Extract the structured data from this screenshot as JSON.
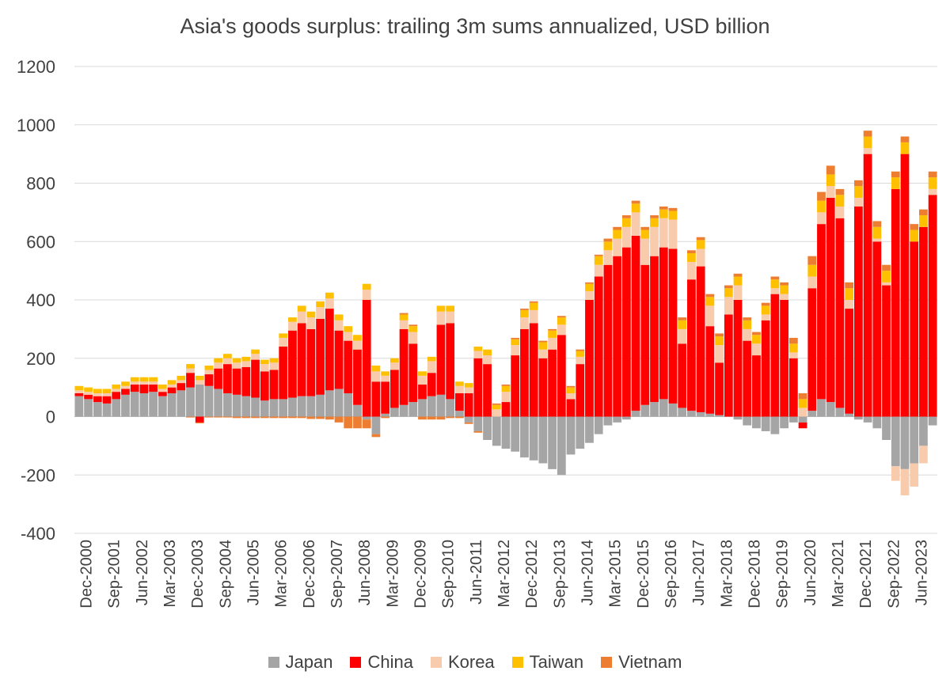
{
  "chart_data": {
    "type": "bar",
    "stacked": true,
    "title": "Asia's goods surplus: trailing 3m sums annualized, USD billion",
    "xlabel": "",
    "ylabel": "",
    "ylim": [
      -400,
      1200
    ],
    "yticks": [
      -400,
      -200,
      0,
      200,
      400,
      600,
      800,
      1000,
      1200
    ],
    "grid": true,
    "legend_position": "bottom",
    "x_tick_labels": [
      "Dec-2000",
      "Sep-2001",
      "Jun-2002",
      "Mar-2003",
      "Dec-2003",
      "Sep-2004",
      "Jun-2005",
      "Mar-2006",
      "Dec-2006",
      "Sep-2007",
      "Jun-2008",
      "Mar-2009",
      "Dec-2009",
      "Sep-2010",
      "Jun-2011",
      "Mar-2012",
      "Dec-2012",
      "Sep-2013",
      "Jun-2014",
      "Mar-2015",
      "Dec-2015",
      "Sep-2016",
      "Jun-2017",
      "Mar-2018",
      "Dec-2018",
      "Sep-2019",
      "Jun-2020",
      "Mar-2021",
      "Dec-2021",
      "Sep-2022",
      "Jun-2023"
    ],
    "categories": [
      "Dec-2000",
      "Mar-2001",
      "Jun-2001",
      "Sep-2001",
      "Dec-2001",
      "Mar-2002",
      "Jun-2002",
      "Sep-2002",
      "Dec-2002",
      "Mar-2003",
      "Jun-2003",
      "Sep-2003",
      "Dec-2003",
      "Mar-2004",
      "Jun-2004",
      "Sep-2004",
      "Dec-2004",
      "Mar-2005",
      "Jun-2005",
      "Sep-2005",
      "Dec-2005",
      "Mar-2006",
      "Jun-2006",
      "Sep-2006",
      "Dec-2006",
      "Mar-2007",
      "Jun-2007",
      "Sep-2007",
      "Dec-2007",
      "Mar-2008",
      "Jun-2008",
      "Sep-2008",
      "Dec-2008",
      "Mar-2009",
      "Jun-2009",
      "Sep-2009",
      "Dec-2009",
      "Mar-2010",
      "Jun-2010",
      "Sep-2010",
      "Dec-2010",
      "Mar-2011",
      "Jun-2011",
      "Sep-2011",
      "Dec-2011",
      "Mar-2012",
      "Jun-2012",
      "Sep-2012",
      "Dec-2012",
      "Mar-2013",
      "Jun-2013",
      "Sep-2013",
      "Dec-2013",
      "Mar-2014",
      "Jun-2014",
      "Sep-2014",
      "Dec-2014",
      "Mar-2015",
      "Jun-2015",
      "Sep-2015",
      "Dec-2015",
      "Mar-2016",
      "Jun-2016",
      "Sep-2016",
      "Dec-2016",
      "Mar-2017",
      "Jun-2017",
      "Sep-2017",
      "Dec-2017",
      "Mar-2018",
      "Jun-2018",
      "Sep-2018",
      "Dec-2018",
      "Mar-2019",
      "Jun-2019",
      "Sep-2019",
      "Dec-2019",
      "Mar-2020",
      "Jun-2020",
      "Sep-2020",
      "Dec-2020",
      "Mar-2021",
      "Jun-2021",
      "Sep-2021",
      "Dec-2021",
      "Mar-2022",
      "Jun-2022",
      "Sep-2022",
      "Dec-2022",
      "Mar-2023",
      "Jun-2023",
      "Sep-2023",
      "Dec-2023"
    ],
    "series": [
      {
        "name": "Japan",
        "color": "#A5A5A5",
        "values": [
          70,
          60,
          50,
          45,
          60,
          75,
          85,
          80,
          85,
          70,
          80,
          90,
          100,
          110,
          105,
          95,
          80,
          75,
          70,
          65,
          55,
          60,
          60,
          65,
          70,
          70,
          75,
          90,
          95,
          80,
          40,
          -10,
          -60,
          10,
          30,
          40,
          50,
          60,
          70,
          75,
          60,
          20,
          -20,
          -50,
          -80,
          -100,
          -110,
          -120,
          -140,
          -150,
          -160,
          -180,
          -200,
          -130,
          -110,
          -90,
          -60,
          -30,
          -20,
          -10,
          20,
          40,
          50,
          60,
          45,
          30,
          20,
          15,
          10,
          5,
          0,
          -10,
          -30,
          -40,
          -50,
          -60,
          -40,
          -20,
          -20,
          20,
          60,
          50,
          30,
          10,
          -10,
          -20,
          -40,
          -80,
          -170,
          -180,
          -160,
          -100,
          -30
        ]
      },
      {
        "name": "China",
        "color": "#FF0000",
        "values": [
          10,
          15,
          20,
          25,
          25,
          20,
          25,
          30,
          25,
          15,
          20,
          25,
          50,
          -20,
          40,
          70,
          100,
          90,
          100,
          130,
          100,
          100,
          180,
          230,
          250,
          230,
          260,
          280,
          200,
          180,
          190,
          400,
          120,
          110,
          130,
          260,
          200,
          50,
          80,
          240,
          260,
          60,
          80,
          200,
          180,
          0,
          50,
          210,
          300,
          320,
          200,
          230,
          280,
          60,
          180,
          400,
          480,
          520,
          550,
          580,
          600,
          480,
          500,
          520,
          530,
          220,
          450,
          500,
          300,
          180,
          350,
          400,
          260,
          210,
          330,
          420,
          400,
          200,
          -20,
          420,
          600,
          700,
          650,
          360,
          720,
          900,
          600,
          450,
          780,
          900,
          600,
          650,
          760
        ]
      },
      {
        "name": "Korea",
        "color": "#F8CBAD",
        "values": [
          10,
          10,
          10,
          10,
          10,
          10,
          10,
          10,
          10,
          10,
          10,
          10,
          15,
          15,
          15,
          20,
          20,
          20,
          20,
          20,
          25,
          25,
          30,
          30,
          40,
          40,
          40,
          35,
          35,
          30,
          30,
          35,
          35,
          20,
          25,
          30,
          40,
          30,
          40,
          45,
          40,
          25,
          20,
          25,
          30,
          25,
          35,
          35,
          40,
          45,
          30,
          40,
          35,
          20,
          25,
          30,
          40,
          50,
          60,
          70,
          80,
          90,
          100,
          100,
          100,
          50,
          60,
          60,
          70,
          60,
          60,
          50,
          40,
          40,
          20,
          20,
          20,
          20,
          30,
          40,
          40,
          40,
          40,
          30,
          30,
          20,
          10,
          10,
          -50,
          -90,
          -80,
          -60,
          20
        ]
      },
      {
        "name": "Taiwan",
        "color": "#FFC000",
        "values": [
          15,
          15,
          15,
          15,
          15,
          15,
          15,
          15,
          15,
          15,
          15,
          15,
          15,
          15,
          15,
          15,
          15,
          15,
          15,
          15,
          15,
          15,
          15,
          15,
          20,
          20,
          20,
          20,
          20,
          20,
          20,
          20,
          20,
          15,
          15,
          20,
          20,
          15,
          15,
          20,
          20,
          15,
          15,
          15,
          20,
          15,
          20,
          20,
          25,
          25,
          25,
          25,
          25,
          20,
          20,
          25,
          30,
          30,
          30,
          30,
          30,
          30,
          30,
          30,
          30,
          30,
          30,
          30,
          30,
          30,
          30,
          30,
          30,
          30,
          30,
          30,
          30,
          30,
          30,
          40,
          40,
          40,
          40,
          40,
          40,
          40,
          40,
          40,
          40,
          40,
          40,
          40,
          40
        ]
      },
      {
        "name": "Vietnam",
        "color": "#ED7D31",
        "values": [
          0,
          0,
          0,
          0,
          0,
          0,
          0,
          0,
          0,
          0,
          0,
          0,
          -3,
          -3,
          -3,
          -3,
          -3,
          -5,
          -5,
          -5,
          -5,
          -5,
          -5,
          -5,
          -5,
          -8,
          -8,
          -10,
          -20,
          -40,
          -40,
          -30,
          -10,
          -5,
          0,
          5,
          5,
          -10,
          -10,
          -10,
          -5,
          -5,
          -5,
          -5,
          0,
          5,
          5,
          5,
          5,
          5,
          5,
          5,
          5,
          5,
          5,
          5,
          5,
          10,
          10,
          10,
          10,
          10,
          10,
          10,
          10,
          10,
          10,
          10,
          10,
          10,
          10,
          10,
          10,
          10,
          10,
          10,
          10,
          20,
          20,
          30,
          30,
          30,
          20,
          20,
          20,
          20,
          20,
          20,
          20,
          20,
          20,
          20,
          20
        ]
      }
    ]
  },
  "legend": {
    "items": [
      {
        "label": "Japan",
        "color": "#A5A5A5"
      },
      {
        "label": "China",
        "color": "#FF0000"
      },
      {
        "label": "Korea",
        "color": "#F8CBAD"
      },
      {
        "label": "Taiwan",
        "color": "#FFC000"
      },
      {
        "label": "Vietnam",
        "color": "#ED7D31"
      }
    ]
  }
}
